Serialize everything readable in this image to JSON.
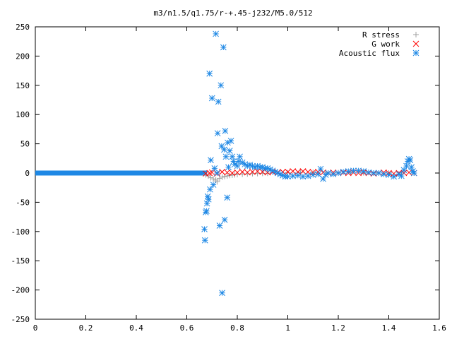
{
  "chart_data": {
    "type": "scatter",
    "title": "m3/n1.5/q1.75/r-+.45-j232/M5.0/512",
    "xlabel": "",
    "ylabel": "",
    "xlim": [
      0,
      1.6
    ],
    "ylim": [
      -250,
      250
    ],
    "x_ticks": [
      0,
      0.2,
      0.4,
      0.6,
      0.8,
      1,
      1.2,
      1.4,
      1.6
    ],
    "y_ticks": [
      -250,
      -200,
      -150,
      -100,
      -50,
      0,
      50,
      100,
      150,
      200,
      250
    ],
    "x_tick_labels": [
      "0",
      "0.2",
      "0.4",
      "0.6",
      "0.8",
      "1",
      "1.2",
      "1.4",
      "1.6"
    ],
    "y_tick_labels": [
      "-250",
      "-200",
      "-150",
      "-100",
      "-50",
      "0",
      "50",
      "100",
      "150",
      "200",
      "250"
    ],
    "grid": false,
    "legend_position": "top-right",
    "series": [
      {
        "name": "R stress",
        "marker": "plus",
        "color": "#a0a0a0",
        "points": [
          [
            0.675,
            -3
          ],
          [
            0.685,
            -5
          ],
          [
            0.695,
            -8
          ],
          [
            0.705,
            -10
          ],
          [
            0.715,
            -12
          ],
          [
            0.72,
            -15
          ],
          [
            0.73,
            -9
          ],
          [
            0.74,
            -7
          ],
          [
            0.75,
            -6
          ],
          [
            0.76,
            -5
          ],
          [
            0.77,
            -4
          ],
          [
            0.78,
            -3.5
          ],
          [
            0.79,
            -3
          ],
          [
            0.8,
            -2.5
          ],
          [
            0.82,
            -2
          ],
          [
            0.84,
            -1.5
          ],
          [
            0.86,
            -1
          ],
          [
            0.88,
            -0.8
          ],
          [
            0.9,
            -0.5
          ],
          [
            0.92,
            -0.3
          ],
          [
            0.95,
            0
          ],
          [
            1.0,
            0.5
          ],
          [
            1.05,
            1
          ],
          [
            1.1,
            1
          ],
          [
            1.15,
            0.5
          ],
          [
            1.2,
            0.5
          ],
          [
            1.25,
            1
          ],
          [
            1.3,
            0.5
          ],
          [
            1.35,
            0.5
          ],
          [
            1.4,
            0
          ],
          [
            1.45,
            0
          ],
          [
            1.5,
            0
          ]
        ]
      },
      {
        "name": "G work",
        "marker": "cross",
        "color": "#ff0000",
        "points": [
          [
            0.675,
            -1
          ],
          [
            0.69,
            0
          ],
          [
            0.7,
            1
          ],
          [
            0.72,
            -1
          ],
          [
            0.74,
            2
          ],
          [
            0.76,
            1
          ],
          [
            0.78,
            0
          ],
          [
            0.8,
            1
          ],
          [
            0.82,
            2
          ],
          [
            0.84,
            1
          ],
          [
            0.86,
            2
          ],
          [
            0.88,
            3
          ],
          [
            0.9,
            2
          ],
          [
            0.92,
            1
          ],
          [
            0.94,
            2
          ],
          [
            0.96,
            1
          ],
          [
            0.98,
            2
          ],
          [
            1.0,
            2
          ],
          [
            1.02,
            3
          ],
          [
            1.04,
            2
          ],
          [
            1.06,
            3
          ],
          [
            1.08,
            2
          ],
          [
            1.1,
            1
          ],
          [
            1.12,
            2
          ],
          [
            1.14,
            1
          ],
          [
            1.16,
            0
          ],
          [
            1.18,
            1
          ],
          [
            1.2,
            0
          ],
          [
            1.22,
            1
          ],
          [
            1.24,
            0
          ],
          [
            1.26,
            1
          ],
          [
            1.28,
            0
          ],
          [
            1.3,
            1
          ],
          [
            1.32,
            0
          ],
          [
            1.34,
            -1
          ],
          [
            1.36,
            0
          ],
          [
            1.38,
            1
          ],
          [
            1.4,
            0
          ],
          [
            1.42,
            -1
          ],
          [
            1.44,
            0
          ],
          [
            1.46,
            0
          ],
          [
            1.48,
            1
          ],
          [
            1.5,
            0
          ]
        ]
      },
      {
        "name": "Acoustic flux",
        "marker": "star",
        "color": "#1e88e5",
        "points": [
          [
            0.67,
            -96
          ],
          [
            0.672,
            -115
          ],
          [
            0.675,
            -67
          ],
          [
            0.678,
            -65
          ],
          [
            0.68,
            -52
          ],
          [
            0.683,
            -40
          ],
          [
            0.686,
            -45
          ],
          [
            0.69,
            170
          ],
          [
            0.692,
            -28
          ],
          [
            0.695,
            22
          ],
          [
            0.7,
            128
          ],
          [
            0.705,
            -20
          ],
          [
            0.71,
            8
          ],
          [
            0.715,
            238
          ],
          [
            0.72,
            0
          ],
          [
            0.722,
            68
          ],
          [
            0.725,
            122
          ],
          [
            0.73,
            -90
          ],
          [
            0.735,
            150
          ],
          [
            0.738,
            46
          ],
          [
            0.74,
            -205
          ],
          [
            0.745,
            215
          ],
          [
            0.748,
            40
          ],
          [
            0.75,
            -80
          ],
          [
            0.752,
            72
          ],
          [
            0.755,
            28
          ],
          [
            0.76,
            -42
          ],
          [
            0.762,
            52
          ],
          [
            0.765,
            10
          ],
          [
            0.77,
            38
          ],
          [
            0.775,
            55
          ],
          [
            0.78,
            28
          ],
          [
            0.785,
            20
          ],
          [
            0.79,
            15
          ],
          [
            0.8,
            12
          ],
          [
            0.805,
            20
          ],
          [
            0.81,
            28
          ],
          [
            0.82,
            18
          ],
          [
            0.83,
            15
          ],
          [
            0.84,
            12
          ],
          [
            0.85,
            14
          ],
          [
            0.86,
            12
          ],
          [
            0.87,
            10
          ],
          [
            0.88,
            12
          ],
          [
            0.89,
            10
          ],
          [
            0.9,
            10
          ],
          [
            0.91,
            8
          ],
          [
            0.92,
            8
          ],
          [
            0.93,
            6
          ],
          [
            0.94,
            4
          ],
          [
            0.95,
            2
          ],
          [
            0.96,
            0
          ],
          [
            0.97,
            -2
          ],
          [
            0.98,
            -4
          ],
          [
            0.99,
            -6
          ],
          [
            1.0,
            -6
          ],
          [
            1.02,
            -5
          ],
          [
            1.04,
            -4
          ],
          [
            1.06,
            -6
          ],
          [
            1.08,
            -5
          ],
          [
            1.1,
            -3
          ],
          [
            1.12,
            -2
          ],
          [
            1.13,
            7
          ],
          [
            1.14,
            -10
          ],
          [
            1.15,
            -3
          ],
          [
            1.16,
            0
          ],
          [
            1.18,
            -2
          ],
          [
            1.2,
            0
          ],
          [
            1.22,
            2
          ],
          [
            1.24,
            3
          ],
          [
            1.26,
            4
          ],
          [
            1.28,
            4
          ],
          [
            1.3,
            3
          ],
          [
            1.32,
            1
          ],
          [
            1.34,
            0
          ],
          [
            1.36,
            0
          ],
          [
            1.38,
            -2
          ],
          [
            1.4,
            -3
          ],
          [
            1.42,
            -6
          ],
          [
            1.44,
            -2
          ],
          [
            1.45,
            -5
          ],
          [
            1.46,
            5
          ],
          [
            1.47,
            12
          ],
          [
            1.475,
            20
          ],
          [
            1.48,
            24
          ],
          [
            1.485,
            22
          ],
          [
            1.49,
            10
          ],
          [
            1.495,
            3
          ],
          [
            1.5,
            0
          ]
        ]
      }
    ],
    "dense_zero_band": {
      "series": "Acoustic flux",
      "x_from": 0,
      "x_to": 0.68,
      "y": 0
    }
  }
}
